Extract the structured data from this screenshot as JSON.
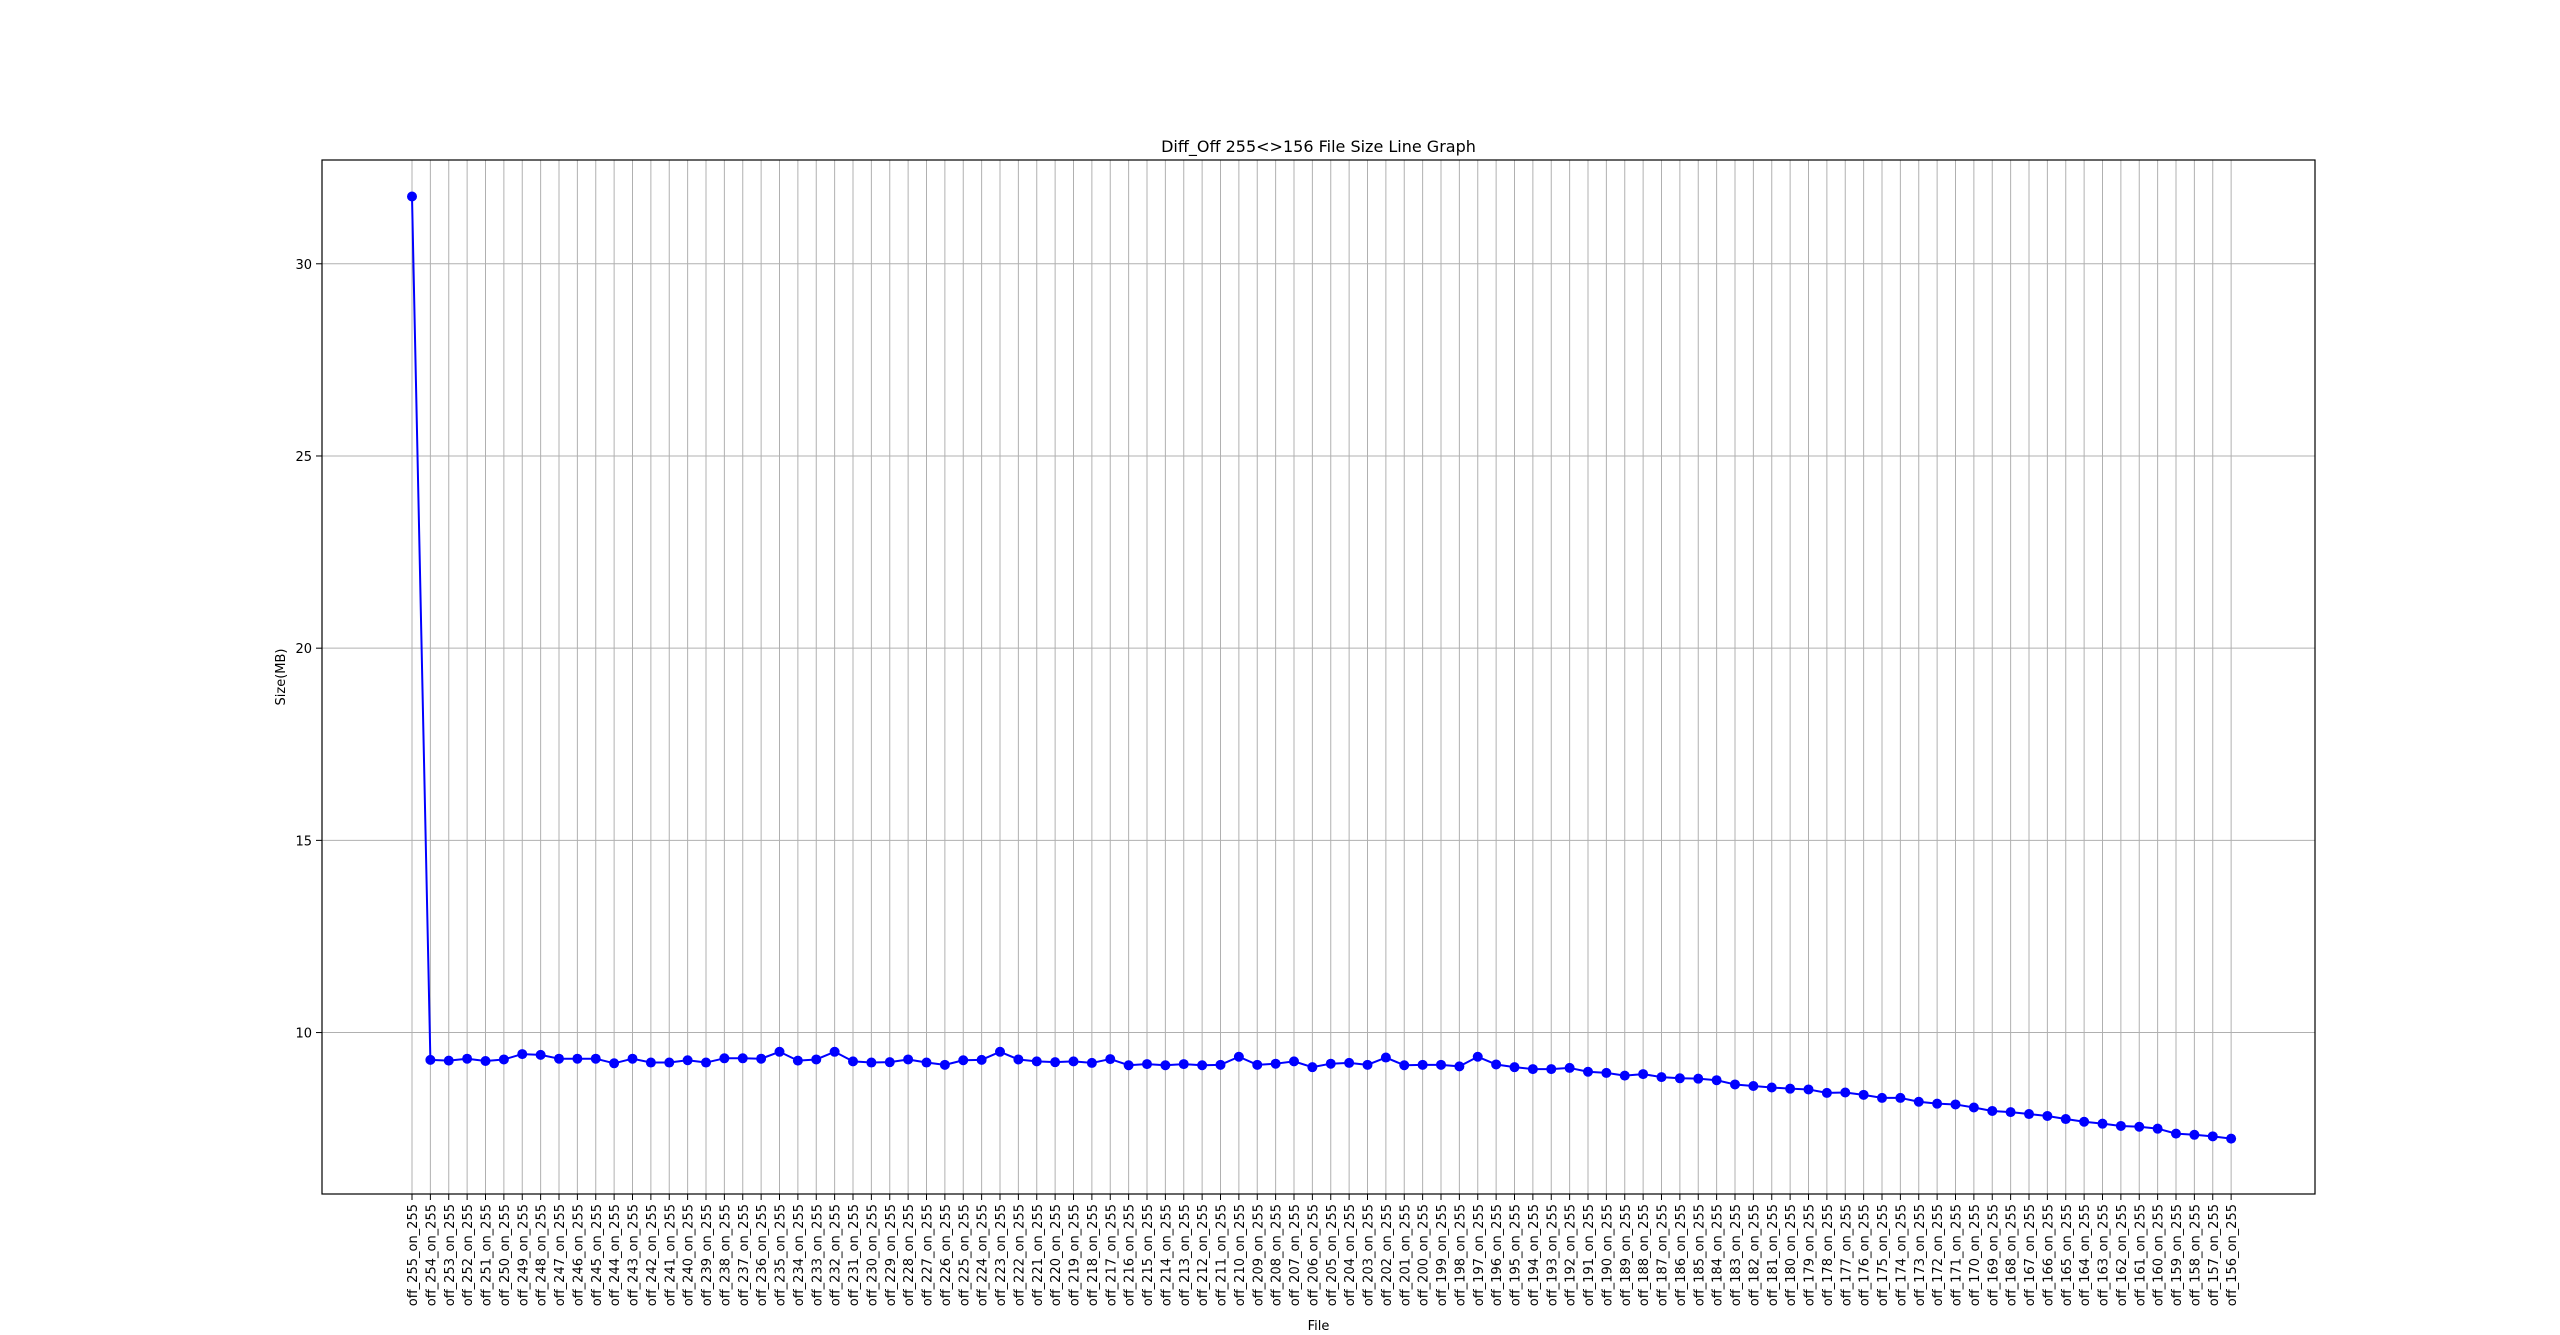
{
  "chart_data": {
    "type": "line",
    "title": "Diff_Off 255<>156 File Size Line Graph",
    "xlabel": "File",
    "ylabel": "Size(MB)",
    "ylim": [
      5.8,
      32.7
    ],
    "yticks": [
      10,
      15,
      20,
      25,
      30
    ],
    "grid": true,
    "color": "#0000ff",
    "series": [
      {
        "x": [
          "off_255_on_255",
          "off_254_on_255",
          "off_253_on_255",
          "off_252_on_255",
          "off_251_on_255",
          "off_250_on_255",
          "off_249_on_255",
          "off_248_on_255",
          "off_247_on_255",
          "off_246_on_255",
          "off_245_on_255",
          "off_244_on_255",
          "off_243_on_255",
          "off_242_on_255",
          "off_241_on_255",
          "off_240_on_255",
          "off_239_on_255",
          "off_238_on_255",
          "off_237_on_255",
          "off_236_on_255",
          "off_235_on_255",
          "off_234_on_255",
          "off_233_on_255",
          "off_232_on_255",
          "off_231_on_255",
          "off_230_on_255",
          "off_229_on_255",
          "off_228_on_255",
          "off_227_on_255",
          "off_226_on_255",
          "off_225_on_255",
          "off_224_on_255",
          "off_223_on_255",
          "off_222_on_255",
          "off_221_on_255",
          "off_220_on_255",
          "off_219_on_255",
          "off_218_on_255",
          "off_217_on_255",
          "off_216_on_255",
          "off_215_on_255",
          "off_214_on_255",
          "off_213_on_255",
          "off_212_on_255",
          "off_211_on_255",
          "off_210_on_255",
          "off_209_on_255",
          "off_208_on_255",
          "off_207_on_255",
          "off_206_on_255",
          "off_205_on_255",
          "off_204_on_255",
          "off_203_on_255",
          "off_202_on_255",
          "off_201_on_255",
          "off_200_on_255",
          "off_199_on_255",
          "off_198_on_255",
          "off_197_on_255",
          "off_196_on_255",
          "off_195_on_255",
          "off_194_on_255",
          "off_193_on_255",
          "off_192_on_255",
          "off_191_on_255",
          "off_190_on_255",
          "off_189_on_255",
          "off_188_on_255",
          "off_187_on_255",
          "off_186_on_255",
          "off_185_on_255",
          "off_184_on_255",
          "off_183_on_255",
          "off_182_on_255",
          "off_181_on_255",
          "off_180_on_255",
          "off_179_on_255",
          "off_178_on_255",
          "off_177_on_255",
          "off_176_on_255",
          "off_175_on_255",
          "off_174_on_255",
          "off_173_on_255",
          "off_172_on_255",
          "off_171_on_255",
          "off_170_on_255",
          "off_169_on_255",
          "off_168_on_255",
          "off_167_on_255",
          "off_166_on_255",
          "off_165_on_255",
          "off_164_on_255",
          "off_163_on_255",
          "off_162_on_255",
          "off_161_on_255",
          "off_160_on_255",
          "off_159_on_255",
          "off_158_on_255",
          "off_157_on_255",
          "off_156_on_255"
        ],
        "values": [
          31.75,
          9.29,
          9.27,
          9.32,
          9.26,
          9.3,
          9.44,
          9.42,
          9.32,
          9.32,
          9.32,
          9.2,
          9.32,
          9.22,
          9.22,
          9.28,
          9.22,
          9.33,
          9.33,
          9.32,
          9.5,
          9.27,
          9.3,
          9.5,
          9.25,
          9.22,
          9.23,
          9.3,
          9.22,
          9.16,
          9.28,
          9.29,
          9.5,
          9.3,
          9.25,
          9.23,
          9.25,
          9.21,
          9.31,
          9.15,
          9.18,
          9.15,
          9.18,
          9.15,
          9.16,
          9.37,
          9.16,
          9.19,
          9.25,
          9.1,
          9.19,
          9.21,
          9.16,
          9.35,
          9.15,
          9.16,
          9.16,
          9.12,
          9.37,
          9.17,
          9.1,
          9.05,
          9.05,
          9.08,
          8.98,
          8.95,
          8.88,
          8.92,
          8.84,
          8.81,
          8.8,
          8.76,
          8.65,
          8.61,
          8.57,
          8.54,
          8.52,
          8.43,
          8.44,
          8.38,
          8.3,
          8.3,
          8.2,
          8.15,
          8.13,
          8.05,
          7.96,
          7.93,
          7.88,
          7.83,
          7.75,
          7.68,
          7.63,
          7.57,
          7.55,
          7.5,
          7.37,
          7.34,
          7.3,
          7.24
        ]
      }
    ]
  }
}
